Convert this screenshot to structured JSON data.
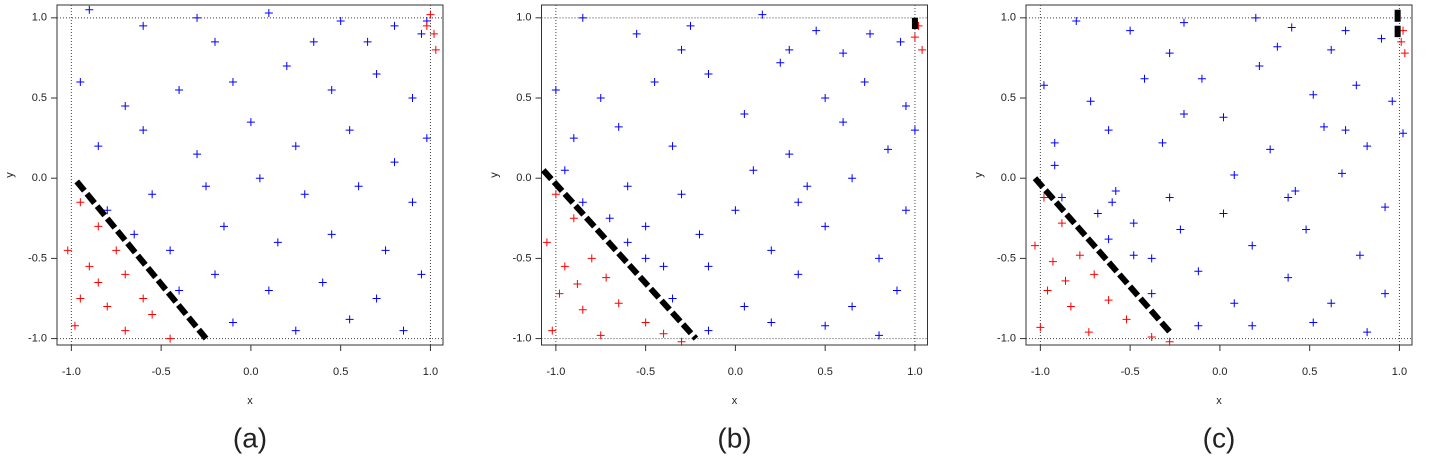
{
  "chart_data": [
    {
      "type": "scatter",
      "caption": "(a)",
      "xlabel": "x",
      "ylabel": "y",
      "xlim": [
        -1.08,
        1.07
      ],
      "ylim": [
        -1.04,
        1.08
      ],
      "xticks": [
        {
          "value": -1,
          "label": "-1.0"
        },
        -0.5,
        {
          "value": 0,
          "label": "0.0"
        },
        0.5,
        {
          "value": 1,
          "label": "1.0"
        }
      ],
      "yticks": [
        {
          "value": -1,
          "label": "-1.0"
        },
        -0.5,
        {
          "value": 0,
          "label": "0.0"
        },
        0.5,
        {
          "value": 1,
          "label": "1.0"
        }
      ],
      "reflines": [
        -1,
        1
      ],
      "series": [
        {
          "mark": "plus",
          "color": "#0000ff",
          "x": [
            -0.9,
            -0.6,
            -0.3,
            0.1,
            0.5,
            0.8,
            0.95,
            -0.95,
            -0.7,
            -0.4,
            -0.1,
            0.2,
            0.45,
            0.7,
            0.9,
            -0.85,
            -0.6,
            -0.3,
            0,
            0.25,
            0.55,
            0.8,
            0.98,
            -0.8,
            -0.55,
            -0.25,
            0.05,
            0.3,
            0.6,
            0.9,
            -0.65,
            -0.45,
            -0.15,
            0.15,
            0.45,
            0.75,
            -0.4,
            -0.2,
            0.1,
            0.4,
            0.7,
            0.95,
            -0.1,
            0.25,
            0.55,
            0.85,
            0.35,
            -0.2,
            0.65,
            0.98
          ],
          "values": [
            1.05,
            0.95,
            1.0,
            1.03,
            0.98,
            0.95,
            0.9,
            0.6,
            0.45,
            0.55,
            0.6,
            0.7,
            0.55,
            0.65,
            0.5,
            0.2,
            0.3,
            0.15,
            0.35,
            0.2,
            0.3,
            0.1,
            0.25,
            -0.2,
            -0.1,
            -0.05,
            0.0,
            -0.1,
            -0.05,
            -0.15,
            -0.35,
            -0.45,
            -0.3,
            -0.4,
            -0.35,
            -0.45,
            -0.7,
            -0.6,
            -0.7,
            -0.65,
            -0.75,
            -0.6,
            -0.9,
            -0.95,
            -0.88,
            -0.95,
            0.85,
            0.85,
            0.85,
            0.98
          ]
        },
        {
          "mark": "plus",
          "color": "#ff0000",
          "x": [
            -0.95,
            -0.85,
            -1.02,
            -0.9,
            -0.75,
            -0.7,
            -0.95,
            -0.8,
            -0.6,
            -0.55,
            -0.98,
            -0.7,
            -0.45,
            -0.85,
            1.0,
            1.02,
            1.03,
            0.98
          ],
          "values": [
            -0.15,
            -0.3,
            -0.45,
            -0.55,
            -0.45,
            -0.6,
            -0.75,
            -0.8,
            -0.75,
            -0.85,
            -0.92,
            -0.95,
            -1.0,
            -0.65,
            1.02,
            0.9,
            0.8,
            0.95
          ]
        },
        {
          "mark": "line",
          "color": "#000000",
          "x": [
            -0.97,
            -0.25
          ],
          "values": [
            -0.02,
            -1.0
          ]
        }
      ]
    },
    {
      "type": "scatter",
      "caption": "(b)",
      "xlabel": "x",
      "ylabel": "y",
      "xlim": [
        -1.08,
        1.07
      ],
      "ylim": [
        -1.04,
        1.08
      ],
      "xticks": [
        {
          "value": -1,
          "label": "-1.0"
        },
        -0.5,
        {
          "value": 0,
          "label": "0.0"
        },
        0.5,
        {
          "value": 1,
          "label": "1.0"
        }
      ],
      "yticks": [
        {
          "value": -1,
          "label": "-1.0"
        },
        -0.5,
        {
          "value": 0,
          "label": "0.0"
        },
        0.5,
        {
          "value": 1,
          "label": "1.0"
        }
      ],
      "reflines": [
        -1,
        1
      ],
      "series": [
        {
          "mark": "plus",
          "color": "#0000ff",
          "x": [
            -0.85,
            -0.55,
            -0.25,
            0.15,
            0.45,
            0.75,
            0.92,
            -1.0,
            -0.75,
            -0.45,
            -0.15,
            0.25,
            0.5,
            0.72,
            0.95,
            -0.9,
            -0.65,
            -0.35,
            0.05,
            0.3,
            0.6,
            0.85,
            1.0,
            -0.85,
            -0.6,
            -0.3,
            0.1,
            0.35,
            0.65,
            0.95,
            -0.6,
            -0.5,
            -0.2,
            0.2,
            0.5,
            0.8,
            -0.35,
            -0.15,
            0.05,
            0.35,
            0.65,
            0.9,
            -0.15,
            0.2,
            0.5,
            0.8,
            0.3,
            -0.3,
            0.6,
            -0.95,
            -0.7,
            -0.5,
            -0.4,
            0.0,
            0.4
          ],
          "values": [
            1.0,
            0.9,
            0.95,
            1.02,
            0.92,
            0.9,
            0.85,
            0.55,
            0.5,
            0.6,
            0.65,
            0.72,
            0.5,
            0.6,
            0.45,
            0.25,
            0.32,
            0.2,
            0.4,
            0.15,
            0.35,
            0.18,
            0.3,
            -0.15,
            -0.05,
            -0.1,
            0.05,
            -0.15,
            0.0,
            -0.2,
            -0.4,
            -0.5,
            -0.35,
            -0.45,
            -0.3,
            -0.5,
            -0.75,
            -0.55,
            -0.8,
            -0.6,
            -0.8,
            -0.7,
            -0.95,
            -0.9,
            -0.92,
            -0.98,
            0.8,
            0.8,
            0.78,
            0.05,
            -0.25,
            -0.3,
            -0.55,
            -0.2,
            -0.05
          ]
        },
        {
          "mark": "plus",
          "color": "#ff0000",
          "x": [
            -1.0,
            -0.9,
            -1.05,
            -0.95,
            -0.8,
            -0.72,
            -0.98,
            -0.85,
            -0.65,
            -0.5,
            -1.02,
            -0.75,
            -0.4,
            -0.88,
            -0.3,
            1.02,
            1.04,
            1.0
          ],
          "values": [
            -0.1,
            -0.25,
            -0.4,
            -0.55,
            -0.5,
            -0.62,
            -0.72,
            -0.82,
            -0.78,
            -0.9,
            -0.95,
            -0.98,
            -0.97,
            -0.66,
            -1.02,
            0.95,
            0.8,
            0.88
          ]
        },
        {
          "mark": "line",
          "color": "#000000",
          "x": [
            -1.07,
            -0.22
          ],
          "values": [
            0.05,
            -1.0
          ]
        },
        {
          "mark": "line",
          "color": "#000000",
          "x": [
            1.0,
            1.0
          ],
          "values": [
            1.0,
            0.93
          ]
        }
      ]
    },
    {
      "type": "scatter",
      "caption": "(c)",
      "xlabel": "x",
      "ylabel": "y",
      "xlim": [
        -1.08,
        1.07
      ],
      "ylim": [
        -1.04,
        1.08
      ],
      "xticks": [
        {
          "value": -1,
          "label": "-1.0"
        },
        -0.5,
        {
          "value": 0,
          "label": "0.0"
        },
        0.5,
        {
          "value": 1,
          "label": "1.0"
        }
      ],
      "yticks": [
        {
          "value": -1,
          "label": "-1.0"
        },
        -0.5,
        {
          "value": 0,
          "label": "0.0"
        },
        0.5,
        {
          "value": 1,
          "label": "1.0"
        }
      ],
      "reflines": [
        -1,
        1
      ],
      "series": [
        {
          "mark": "plus",
          "color": "#0000ff",
          "x": [
            -0.8,
            -0.5,
            -0.2,
            0.2,
            0.4,
            0.7,
            0.9,
            -0.98,
            -0.72,
            -0.42,
            -0.1,
            0.22,
            0.52,
            0.76,
            0.96,
            -0.92,
            -0.62,
            -0.32,
            0.02,
            0.28,
            0.58,
            0.82,
            1.02,
            -0.88,
            -0.58,
            -0.28,
            0.08,
            0.38,
            0.68,
            0.92,
            -0.62,
            -0.48,
            -0.22,
            0.18,
            0.48,
            0.78,
            -0.38,
            -0.12,
            0.08,
            0.38,
            0.62,
            0.92,
            -0.12,
            0.18,
            0.52,
            0.82,
            0.32,
            -0.28,
            0.62,
            -0.92,
            -0.68,
            -0.48,
            -0.38,
            0.02,
            0.42,
            -0.6,
            -0.2,
            0.7
          ],
          "values": [
            0.98,
            0.92,
            0.97,
            1.0,
            0.94,
            0.92,
            0.87,
            0.58,
            0.48,
            0.62,
            0.62,
            0.7,
            0.52,
            0.58,
            0.48,
            0.22,
            0.3,
            0.22,
            0.38,
            0.18,
            0.32,
            0.2,
            0.28,
            -0.12,
            -0.08,
            -0.12,
            0.02,
            -0.12,
            0.03,
            -0.18,
            -0.38,
            -0.48,
            -0.32,
            -0.42,
            -0.32,
            -0.48,
            -0.72,
            -0.58,
            -0.78,
            -0.62,
            -0.78,
            -0.72,
            -0.92,
            -0.92,
            -0.9,
            -0.96,
            0.82,
            0.78,
            0.8,
            0.08,
            -0.22,
            -0.28,
            -0.5,
            -0.22,
            -0.08,
            -0.15,
            0.4,
            0.3
          ]
        },
        {
          "mark": "plus",
          "color": "#ff0000",
          "x": [
            -0.98,
            -0.88,
            -1.03,
            -0.93,
            -0.78,
            -0.7,
            -0.96,
            -0.83,
            -0.62,
            -0.52,
            -1.0,
            -0.73,
            -0.38,
            -0.86,
            -0.28,
            1.02,
            1.03,
            1.01
          ],
          "values": [
            -0.12,
            -0.28,
            -0.42,
            -0.52,
            -0.48,
            -0.6,
            -0.7,
            -0.8,
            -0.76,
            -0.88,
            -0.93,
            -0.96,
            -0.99,
            -0.64,
            -1.02,
            0.92,
            0.78,
            0.85
          ]
        },
        {
          "mark": "line",
          "color": "#000000",
          "x": [
            -1.03,
            -0.27
          ],
          "values": [
            0.0,
            -0.97
          ]
        },
        {
          "mark": "line",
          "color": "#000000",
          "x": [
            0.99,
            0.99
          ],
          "values": [
            1.05,
            0.88
          ]
        }
      ]
    }
  ]
}
